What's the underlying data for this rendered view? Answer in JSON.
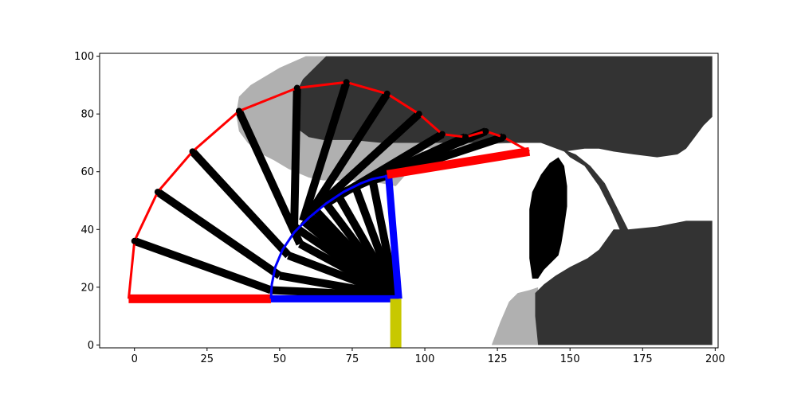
{
  "chart_data": {
    "type": "line",
    "title": "",
    "xlabel": "",
    "ylabel": "",
    "xlim": [
      -12,
      201
    ],
    "ylim": [
      -1,
      101
    ],
    "x_ticks": [
      0,
      25,
      50,
      75,
      100,
      125,
      150,
      175,
      200
    ],
    "y_ticks": [
      0,
      20,
      40,
      60,
      80,
      100
    ],
    "grid": false,
    "legend": "none",
    "colors": {
      "occupied": "#333333",
      "inflated": "#b0b0b0",
      "unknown": "#000000",
      "free": "#ffffff",
      "arm": "#ff0000",
      "path": "#0000ff",
      "base": "#c8c800",
      "sweep": "#000000"
    },
    "occupancy_regions": [
      {
        "kind": "inflated",
        "polygon": [
          [
            59,
            100
          ],
          [
            66,
            100
          ],
          [
            66,
            98
          ],
          [
            96,
            98
          ],
          [
            118,
            80
          ],
          [
            128,
            76
          ],
          [
            140,
            75
          ],
          [
            143,
            73
          ],
          [
            142,
            70
          ],
          [
            130,
            70
          ],
          [
            115,
            69
          ],
          [
            100,
            68
          ],
          [
            96,
            62
          ],
          [
            90,
            55
          ],
          [
            85,
            56
          ],
          [
            75,
            57
          ],
          [
            65,
            57
          ],
          [
            60,
            58
          ],
          [
            53,
            61
          ],
          [
            48,
            64
          ],
          [
            44,
            66
          ],
          [
            39,
            70
          ],
          [
            36,
            74
          ],
          [
            35,
            80
          ],
          [
            36,
            86
          ],
          [
            40,
            90
          ],
          [
            45,
            93
          ],
          [
            50,
            96
          ]
        ]
      },
      {
        "kind": "occupied",
        "polygon": [
          [
            66,
            100
          ],
          [
            199,
            100
          ],
          [
            199,
            79
          ],
          [
            196,
            76
          ],
          [
            193,
            72
          ],
          [
            190,
            68
          ],
          [
            187,
            66
          ],
          [
            180,
            65
          ],
          [
            172,
            66
          ],
          [
            165,
            67
          ],
          [
            160,
            68
          ],
          [
            155,
            68
          ],
          [
            148,
            67
          ],
          [
            140,
            70
          ],
          [
            128,
            70
          ],
          [
            115,
            70
          ],
          [
            100,
            70
          ],
          [
            85,
            70
          ],
          [
            75,
            71
          ],
          [
            65,
            71
          ],
          [
            60,
            72
          ],
          [
            56,
            75
          ],
          [
            55,
            80
          ],
          [
            55,
            86
          ],
          [
            58,
            92
          ],
          [
            63,
            97
          ]
        ]
      },
      {
        "kind": "occupied",
        "polygon": [
          [
            147,
            68
          ],
          [
            152,
            66
          ],
          [
            157,
            62
          ],
          [
            162,
            56
          ],
          [
            166,
            48
          ],
          [
            170,
            40
          ],
          [
            172,
            37
          ],
          [
            173,
            34
          ],
          [
            170,
            32
          ],
          [
            168,
            38
          ],
          [
            164,
            47
          ],
          [
            160,
            55
          ],
          [
            155,
            62
          ],
          [
            150,
            65
          ]
        ]
      },
      {
        "kind": "inflated",
        "polygon": [
          [
            123,
            0
          ],
          [
            126,
            8
          ],
          [
            129,
            15
          ],
          [
            132,
            18
          ],
          [
            136,
            19
          ],
          [
            139,
            20
          ],
          [
            139,
            0
          ]
        ]
      },
      {
        "kind": "occupied",
        "polygon": [
          [
            139,
            0
          ],
          [
            199,
            0
          ],
          [
            199,
            43
          ],
          [
            190,
            43
          ],
          [
            180,
            41
          ],
          [
            170,
            40
          ],
          [
            165,
            40
          ],
          [
            160,
            33
          ],
          [
            156,
            30
          ],
          [
            150,
            27
          ],
          [
            145,
            24
          ],
          [
            141,
            21
          ],
          [
            138,
            18
          ],
          [
            138,
            10
          ]
        ]
      },
      {
        "kind": "unknown",
        "polygon": [
          [
            136,
            47
          ],
          [
            137,
            53
          ],
          [
            140,
            59
          ],
          [
            143,
            63
          ],
          [
            146,
            65
          ],
          [
            148,
            62
          ],
          [
            149,
            55
          ],
          [
            149,
            48
          ],
          [
            148,
            41
          ],
          [
            147,
            35
          ],
          [
            146,
            31
          ],
          [
            144,
            29
          ],
          [
            141,
            26
          ],
          [
            139,
            23
          ],
          [
            137,
            23
          ],
          [
            136,
            30
          ],
          [
            136,
            40
          ]
        ]
      }
    ],
    "series": [
      {
        "kind": "arm",
        "color": "#ff0000",
        "width": 11,
        "x": [
          -2,
          47
        ],
        "y": [
          16,
          16
        ]
      },
      {
        "kind": "path",
        "color": "#0000ff",
        "width": 3,
        "x": [
          47,
          47.3,
          48.5,
          51,
          55,
          60,
          66,
          72,
          78,
          82,
          87
        ],
        "y": [
          16,
          21,
          27,
          33,
          39,
          44,
          49,
          53,
          56,
          57.5,
          58.5
        ]
      },
      {
        "kind": "path",
        "color": "#0000ff",
        "width": 9,
        "x": [
          47,
          91
        ],
        "y": [
          16,
          16
        ]
      },
      {
        "kind": "path",
        "color": "#0000ff",
        "width": 9,
        "x": [
          87.5,
          91
        ],
        "y": [
          59,
          16
        ]
      },
      {
        "kind": "base",
        "color": "#c8c800",
        "width": 14,
        "x": [
          90,
          90
        ],
        "y": [
          -1,
          16
        ]
      },
      {
        "kind": "arm",
        "color": "#ff0000",
        "width": 11,
        "x": [
          87,
          136
        ],
        "y": [
          59,
          67
        ]
      },
      {
        "kind": "sweep",
        "color": "#ff0000",
        "width": 3,
        "x": [
          -2,
          0,
          8,
          20,
          36,
          56,
          73,
          87,
          98,
          106,
          114,
          121,
          127,
          136
        ],
        "y": [
          16,
          36,
          53,
          67,
          81,
          89,
          91,
          87,
          80,
          73,
          72,
          74,
          72,
          67
        ]
      }
    ],
    "sweep_links": [
      {
        "x": [
          0,
          47
        ],
        "y": [
          36,
          19
        ]
      },
      {
        "x": [
          8,
          50
        ],
        "y": [
          53,
          24
        ]
      },
      {
        "x": [
          20,
          53
        ],
        "y": [
          67,
          31
        ]
      },
      {
        "x": [
          36,
          57
        ],
        "y": [
          81,
          35
        ]
      },
      {
        "x": [
          56,
          55
        ],
        "y": [
          89,
          41
        ]
      },
      {
        "x": [
          73,
          58
        ],
        "y": [
          91,
          43
        ]
      },
      {
        "x": [
          87,
          60
        ],
        "y": [
          87,
          45
        ]
      },
      {
        "x": [
          98,
          62
        ],
        "y": [
          80,
          47
        ]
      },
      {
        "x": [
          106,
          66
        ],
        "y": [
          73,
          49
        ]
      },
      {
        "x": [
          114,
          70
        ],
        "y": [
          72,
          52
        ]
      },
      {
        "x": [
          121,
          76
        ],
        "y": [
          74,
          55
        ]
      },
      {
        "x": [
          127,
          82
        ],
        "y": [
          72,
          57
        ]
      },
      {
        "x": [
          47,
          90
        ],
        "y": [
          19,
          17
        ]
      },
      {
        "x": [
          50,
          90
        ],
        "y": [
          24,
          17
        ]
      },
      {
        "x": [
          53,
          90
        ],
        "y": [
          31,
          17
        ]
      },
      {
        "x": [
          57,
          90
        ],
        "y": [
          35,
          17
        ]
      },
      {
        "x": [
          55,
          90
        ],
        "y": [
          41,
          17
        ]
      },
      {
        "x": [
          58,
          90
        ],
        "y": [
          43,
          17
        ]
      },
      {
        "x": [
          60,
          90
        ],
        "y": [
          45,
          17
        ]
      },
      {
        "x": [
          62,
          90
        ],
        "y": [
          47,
          17
        ]
      },
      {
        "x": [
          66,
          90
        ],
        "y": [
          49,
          17
        ]
      },
      {
        "x": [
          70,
          90
        ],
        "y": [
          52,
          17
        ]
      },
      {
        "x": [
          76,
          90
        ],
        "y": [
          55,
          17
        ]
      },
      {
        "x": [
          82,
          90
        ],
        "y": [
          57,
          17
        ]
      }
    ]
  }
}
